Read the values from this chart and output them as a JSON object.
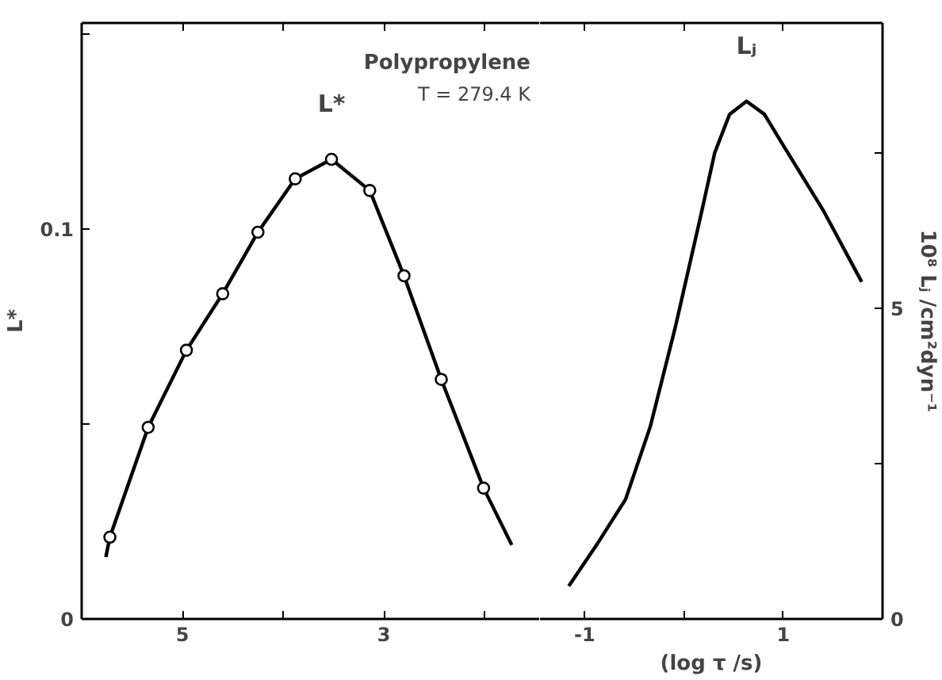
{
  "chart_data": [
    {
      "type": "line",
      "title": "Polypropylene",
      "subtitle": "T = 279.4 K",
      "ylabel": "L*",
      "xlim": [
        6,
        1.45
      ],
      "xticks": [
        5,
        {
          "value": 4,
          "label": null
        },
        3,
        {
          "value": 2,
          "label": null
        }
      ],
      "ylim": [
        0,
        0.153
      ],
      "yticks": [
        0,
        {
          "value": 0.05,
          "label": null
        },
        0.1,
        {
          "value": 0.15,
          "label": null
        }
      ],
      "grid": false,
      "legend": false,
      "series": [
        {
          "name": "L*",
          "color": "#000000",
          "x": [
            5.76,
            5.72,
            5.34,
            4.96,
            4.6,
            4.25,
            3.88,
            3.52,
            3.14,
            2.8,
            2.43,
            2.01,
            1.73
          ],
          "values": [
            0.0159,
            0.021,
            0.0492,
            0.069,
            0.0835,
            0.0993,
            0.113,
            0.118,
            0.11,
            0.0881,
            0.0615,
            0.0336,
            0.019
          ]
        },
        {
          "color": "#000000",
          "type": "scatter",
          "marker": "circle",
          "x": [
            5.72,
            5.34,
            4.96,
            4.6,
            4.25,
            3.88,
            3.52,
            3.14,
            2.8,
            2.43,
            2.01
          ],
          "values": [
            0.021,
            0.0492,
            0.069,
            0.0835,
            0.0993,
            0.113,
            0.118,
            0.11,
            0.0881,
            0.0615,
            0.0336
          ]
        }
      ]
    },
    {
      "type": "line",
      "xlabel": "(log τ /s)",
      "y2label": "10⁸ Lⱼ /cm²dyn⁻¹",
      "xlim": [
        -1.45,
        2
      ],
      "xticks": [
        -1,
        {
          "value": 0,
          "label": null
        },
        1
      ],
      "y2lim": [
        0,
        9.6
      ],
      "y2ticks": [
        0,
        {
          "value": 2.5,
          "label": null
        },
        5,
        {
          "value": 7.5,
          "label": null
        }
      ],
      "grid": false,
      "legend": false,
      "series": [
        {
          "name": "Lⱼ",
          "color": "#000000",
          "axis": "y2",
          "x": [
            -1.16,
            -0.885,
            -0.587,
            -0.339,
            -0.09,
            0.16,
            0.31,
            0.46,
            0.63,
            0.81,
            1.0,
            1.4,
            1.79
          ],
          "values": [
            0.53,
            1.18,
            1.93,
            3.1,
            4.68,
            6.43,
            7.51,
            8.13,
            8.34,
            8.13,
            7.63,
            6.59,
            5.43
          ]
        }
      ]
    }
  ]
}
